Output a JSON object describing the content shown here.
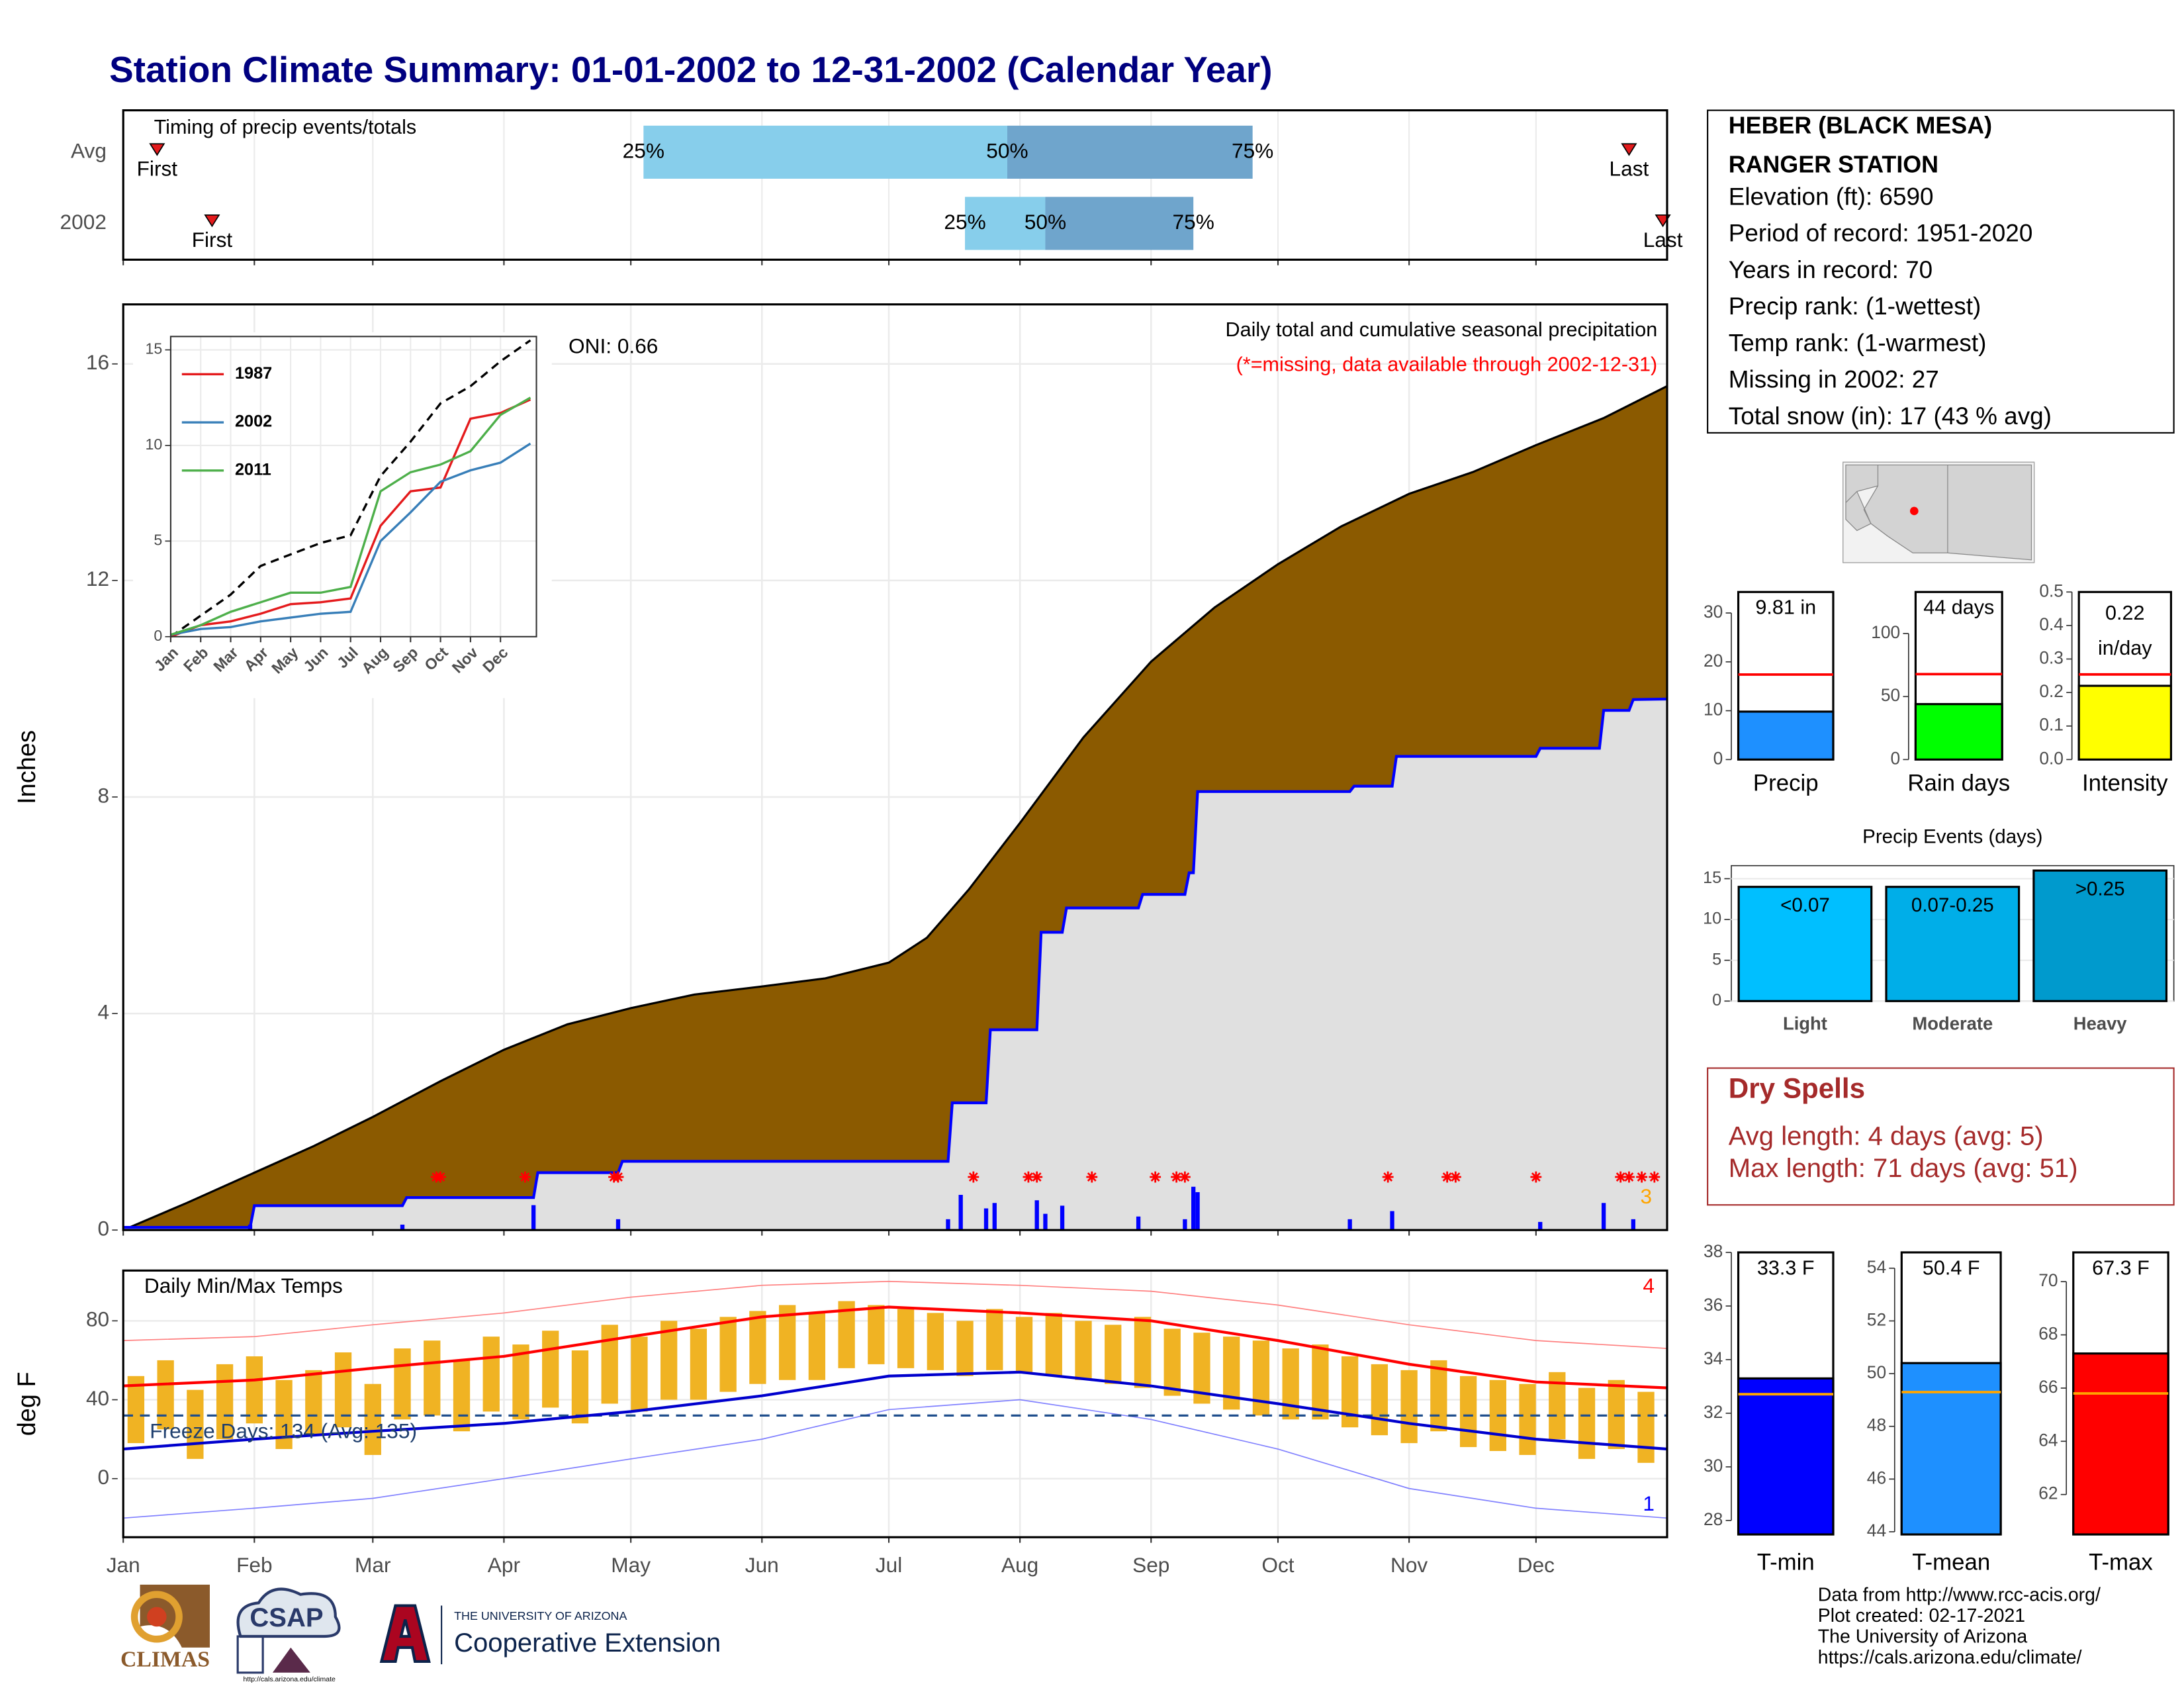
{
  "title": "Station Climate Summary: 01-01-2002 to 12-31-2002 (Calendar Year)",
  "station": {
    "name": [
      "HEBER (BLACK MESA)",
      "RANGER STATION"
    ],
    "lines": [
      "Elevation (ft): 6590",
      "Period of record: 1951-2020",
      "Years in record: 70",
      "Precip rank:  (1-wettest)",
      "Temp rank:  (1-warmest)",
      "Missing in 2002: 27",
      "Total snow (in): 17 (43 % avg)"
    ]
  },
  "dry_spells": {
    "title": "Dry Spells",
    "lines": [
      "Avg length: 4 days (avg: 5)",
      "Max length: 71 days (avg: 51)"
    ]
  },
  "footer": [
    "Data from http://www.rcc-acis.org/",
    "Plot created: 02-17-2021",
    "The University of Arizona",
    "https://cals.arizona.edu/climate/"
  ],
  "logos": {
    "climas": "CLIMAS",
    "csap": "CSAP",
    "csap_url": "http://cals.arizona.edu/climate",
    "ua": "THE UNIVERSITY OF ARIZONA",
    "extension": "Cooperative Extension"
  },
  "chart_data": [
    {
      "type": "timeline",
      "title": "Timing of precip events/totals",
      "categories": [
        "Avg",
        "2002"
      ],
      "series": [
        {
          "name": "First",
          "values": [
            8,
            21
          ]
        },
        {
          "name": "25%",
          "values": [
            123,
            199
          ]
        },
        {
          "name": "50%",
          "values": [
            209,
            218
          ]
        },
        {
          "name": "75%",
          "values": [
            267,
            253
          ]
        },
        {
          "name": "Last",
          "values": [
            356,
            364
          ]
        }
      ],
      "band_colors": [
        "#87ceeb",
        "#6fa5cc"
      ],
      "marker_color": "#e31a1c",
      "xlim": [
        0,
        365
      ],
      "xticks": [
        0,
        31,
        59,
        90,
        120,
        151,
        181,
        212,
        243,
        273,
        304,
        334
      ],
      "grid": true
    },
    {
      "type": "area",
      "ylabel": "Inches",
      "xlim": [
        0,
        365
      ],
      "ylim": [
        0,
        17.1
      ],
      "xticks": [
        0,
        31,
        59,
        90,
        120,
        151,
        181,
        212,
        243,
        273,
        304,
        334
      ],
      "yticks": [
        0,
        4,
        8,
        12,
        16
      ],
      "grid": true,
      "series": [
        {
          "color": "#8b5a00",
          "x": [
            0,
            15,
            31,
            45,
            59,
            75,
            90,
            105,
            120,
            135,
            151,
            166,
            181,
            190,
            200,
            212,
            227,
            243,
            258,
            273,
            288,
            304,
            319,
            334,
            350,
            365
          ],
          "values": [
            0,
            0.5,
            1.06,
            1.55,
            2.09,
            2.75,
            3.33,
            3.8,
            4.1,
            4.35,
            4.5,
            4.65,
            4.94,
            5.4,
            6.3,
            7.52,
            9.1,
            10.5,
            11.5,
            12.3,
            13.0,
            13.6,
            14.0,
            14.5,
            15.0,
            15.59
          ]
        },
        {
          "color": "#0000ff",
          "fill": "#e0e0e0",
          "x": [
            0,
            30,
            31,
            66,
            67,
            97,
            98,
            117,
            118,
            195,
            196,
            204,
            205,
            216,
            217,
            222,
            223,
            240,
            241,
            251,
            252,
            253,
            254,
            290,
            291,
            300,
            301,
            334,
            335,
            349,
            350,
            356,
            357,
            365
          ],
          "values": [
            0.05,
            0.05,
            0.45,
            0.45,
            0.6,
            0.6,
            1.06,
            1.06,
            1.27,
            1.27,
            2.35,
            2.35,
            3.7,
            3.7,
            5.5,
            5.5,
            5.95,
            5.95,
            6.2,
            6.2,
            6.6,
            6.6,
            8.1,
            8.1,
            8.2,
            8.2,
            8.75,
            8.75,
            8.9,
            8.9,
            9.6,
            9.6,
            9.8,
            9.81
          ]
        }
      ],
      "daily": {
        "color": "#0000ff",
        "x": [
          30,
          66,
          97,
          117,
          195,
          198,
          204,
          206,
          216,
          218,
          222,
          240,
          251,
          253,
          254,
          290,
          300,
          335,
          350,
          357
        ],
        "values": [
          0.1,
          0.1,
          0.46,
          0.2,
          0.2,
          0.65,
          0.4,
          0.5,
          0.55,
          0.3,
          0.45,
          0.25,
          0.2,
          0.8,
          0.7,
          0.2,
          0.35,
          0.15,
          0.5,
          0.2
        ]
      },
      "missing_days": [
        74,
        75,
        95,
        116,
        117,
        201,
        214,
        216,
        229,
        244,
        249,
        251,
        299,
        313,
        315,
        334,
        354,
        356,
        359,
        362
      ],
      "missing_color": "#ff0000",
      "annotations": [
        {
          "text": "Daily total and cumulative seasonal precipitation",
          "color": "#000000"
        },
        {
          "text": "(*=missing, data available through 2002-12-31)",
          "color": "#ff0000"
        },
        {
          "text": "ONI: 0.66",
          "color": "#000000"
        },
        {
          "text": "3",
          "color": "#ffa500"
        }
      ]
    },
    {
      "type": "line",
      "x": [
        0,
        1,
        2,
        3,
        4,
        5,
        6,
        7,
        8,
        9,
        10,
        11,
        12
      ],
      "xlim": [
        0,
        12.2
      ],
      "ylim": [
        0,
        15.7
      ],
      "xticks": [
        {
          "value": 0,
          "label": "Jan"
        },
        {
          "value": 1,
          "label": "Feb"
        },
        {
          "value": 2,
          "label": "Mar"
        },
        {
          "value": 3,
          "label": "Apr"
        },
        {
          "value": 4,
          "label": "May"
        },
        {
          "value": 5,
          "label": "Jun"
        },
        {
          "value": 6,
          "label": "Jul"
        },
        {
          "value": 7,
          "label": "Aug"
        },
        {
          "value": 8,
          "label": "Sep"
        },
        {
          "value": 9,
          "label": "Oct"
        },
        {
          "value": 10,
          "label": "Nov"
        },
        {
          "value": 11,
          "label": "Dec"
        }
      ],
      "yticks": [
        0,
        5,
        10,
        15
      ],
      "grid": true,
      "series": [
        {
          "color": "#000000",
          "dashed": true,
          "values": [
            0,
            1.1,
            2.2,
            3.7,
            4.3,
            4.9,
            5.3,
            8.4,
            10.2,
            12.2,
            13.1,
            14.4,
            15.5
          ]
        },
        {
          "name": "1987",
          "color": "#e41a1c",
          "values": [
            0,
            0.6,
            0.8,
            1.2,
            1.7,
            1.8,
            2.0,
            5.8,
            7.6,
            7.8,
            11.4,
            11.7,
            12.4
          ]
        },
        {
          "name": "2002",
          "color": "#377eb8",
          "values": [
            0.1,
            0.4,
            0.5,
            0.8,
            1.0,
            1.2,
            1.3,
            5.0,
            6.5,
            8.1,
            8.7,
            9.1,
            10.1
          ]
        },
        {
          "name": "2011",
          "color": "#4daf4a",
          "values": [
            0.1,
            0.6,
            1.3,
            1.8,
            2.3,
            2.3,
            2.6,
            7.6,
            8.6,
            9.0,
            9.7,
            11.6,
            12.5
          ]
        }
      ],
      "legend": "upper left"
    },
    {
      "type": "temperature",
      "ylabel": "deg F",
      "xlim": [
        0,
        365
      ],
      "ylim": [
        -29.7,
        105.5
      ],
      "xticks": [
        {
          "value": 0,
          "label": "Jan"
        },
        {
          "value": 31,
          "label": "Feb"
        },
        {
          "value": 59,
          "label": "Mar"
        },
        {
          "value": 90,
          "label": "Apr"
        },
        {
          "value": 120,
          "label": "May"
        },
        {
          "value": 151,
          "label": "Jun"
        },
        {
          "value": 181,
          "label": "Jul"
        },
        {
          "value": 212,
          "label": "Aug"
        },
        {
          "value": 243,
          "label": "Sep"
        },
        {
          "value": 273,
          "label": "Oct"
        },
        {
          "value": 304,
          "label": "Nov"
        },
        {
          "value": 334,
          "label": "Dec"
        }
      ],
      "yticks": [
        0,
        40,
        80
      ],
      "grid": true,
      "days": [
        3,
        10,
        17,
        24,
        31,
        38,
        45,
        52,
        59,
        66,
        73,
        80,
        87,
        94,
        101,
        108,
        115,
        122,
        129,
        136,
        143,
        150,
        157,
        164,
        171,
        178,
        185,
        192,
        199,
        206,
        213,
        220,
        227,
        234,
        241,
        248,
        255,
        262,
        269,
        276,
        283,
        290,
        297,
        304,
        311,
        318,
        325,
        332,
        339,
        346,
        353,
        360
      ],
      "tmax": [
        52,
        60,
        45,
        58,
        62,
        50,
        55,
        64,
        48,
        66,
        70,
        60,
        72,
        68,
        75,
        65,
        78,
        72,
        80,
        76,
        82,
        85,
        88,
        84,
        90,
        88,
        86,
        84,
        80,
        86,
        82,
        84,
        80,
        78,
        82,
        76,
        74,
        72,
        70,
        66,
        68,
        62,
        58,
        55,
        60,
        52,
        50,
        48,
        54,
        46,
        50,
        44
      ],
      "tmin": [
        18,
        25,
        10,
        20,
        28,
        15,
        22,
        26,
        12,
        30,
        32,
        24,
        34,
        30,
        36,
        28,
        38,
        34,
        40,
        40,
        44,
        48,
        50,
        50,
        56,
        58,
        56,
        55,
        52,
        55,
        54,
        52,
        50,
        48,
        46,
        42,
        38,
        35,
        32,
        30,
        30,
        26,
        22,
        18,
        24,
        16,
        14,
        12,
        20,
        10,
        15,
        8
      ],
      "bar_color": "#f0b323",
      "normals": {
        "x": [
          0,
          31,
          59,
          90,
          120,
          151,
          181,
          212,
          243,
          273,
          304,
          334,
          365
        ],
        "series": [
          {
            "color": "#ff8080",
            "width": 0.8,
            "values": [
              70,
              72,
              78,
              84,
              92,
              98,
              100,
              98,
              95,
              88,
              78,
              70,
              66
            ]
          },
          {
            "color": "#8080ff",
            "width": 0.8,
            "values": [
              -20,
              -15,
              -10,
              0,
              10,
              20,
              35,
              40,
              30,
              15,
              -5,
              -15,
              -20
            ]
          },
          {
            "color": "#ff0000",
            "width": 2,
            "values": [
              47,
              50,
              56,
              62,
              72,
              82,
              87,
              84,
              80,
              70,
              58,
              49,
              46
            ]
          },
          {
            "color": "#0000cd",
            "width": 2,
            "values": [
              15,
              20,
              24,
              28,
              34,
              42,
              52,
              54,
              47,
              38,
              28,
              20,
              15
            ]
          }
        ]
      },
      "freeze_line": 32,
      "freeze_color": "#1f4e8c",
      "annotations": [
        {
          "text": "Daily Min/Max Temps",
          "color": "#000000"
        },
        {
          "text": "Freeze Days: 134 (Avg: 135)",
          "color": "#1f3f6e"
        },
        {
          "text": "4",
          "color": "#ff0000"
        },
        {
          "text": "1",
          "color": "#0000ff"
        }
      ]
    },
    {
      "type": "bar",
      "categories": [
        "Precip"
      ],
      "values": [
        9.81
      ],
      "value_labels": [
        "9.81 in"
      ],
      "color": "#1e90ff",
      "average": 17.4,
      "average_color": "#ff0000",
      "ylim": [
        0,
        34.3
      ],
      "yticks": [
        0,
        10,
        20,
        30
      ]
    },
    {
      "type": "bar",
      "categories": [
        "Rain days"
      ],
      "values": [
        44
      ],
      "value_labels": [
        "44 days"
      ],
      "color": "#00ff00",
      "average": 67.8,
      "average_color": "#ff0000",
      "ylim": [
        0,
        133
      ],
      "yticks": [
        0,
        50,
        100
      ]
    },
    {
      "type": "bar",
      "categories": [
        "Intensity"
      ],
      "values": [
        0.22
      ],
      "value_labels": [
        [
          "0.22",
          "in/day"
        ]
      ],
      "color": "#ffff00",
      "average": 0.254,
      "average_color": "#ff0000",
      "ylim": [
        0,
        0.5
      ],
      "yticks": [
        {
          "value": 0,
          "label": "0.0"
        },
        0.1,
        0.2,
        0.3,
        0.4,
        0.5
      ]
    },
    {
      "type": "bar",
      "title": "Precip Events (days)",
      "categories": [
        "Light",
        "Moderate",
        "Heavy"
      ],
      "values": [
        14,
        14,
        16
      ],
      "bar_labels": [
        "<0.07",
        "0.07-0.25",
        ">0.25"
      ],
      "colors": [
        "#00bfff",
        "#00aee8",
        "#009acd"
      ],
      "ylim": [
        0,
        16.6
      ],
      "yticks": [
        0,
        5,
        10,
        15
      ],
      "grid": true
    },
    {
      "type": "bar",
      "categories": [
        "T-min"
      ],
      "values": [
        33.3
      ],
      "value_labels": [
        "33.3 F"
      ],
      "color": "#0000ff",
      "average": 32.71,
      "average_color": "#ffa500",
      "ylim": [
        27.48,
        38
      ],
      "yticks": [
        28,
        30,
        32,
        34,
        36,
        38
      ]
    },
    {
      "type": "bar",
      "categories": [
        "T-mean"
      ],
      "values": [
        50.4
      ],
      "value_labels": [
        "50.4 F"
      ],
      "color": "#1e90ff",
      "average": 49.3,
      "average_color": "#ffa500",
      "ylim": [
        43.9,
        54.6
      ],
      "yticks": [
        44,
        46,
        48,
        50,
        52,
        54
      ]
    },
    {
      "type": "bar",
      "categories": [
        "T-max"
      ],
      "values": [
        67.3
      ],
      "value_labels": [
        "67.3 F"
      ],
      "color": "#ff0000",
      "average": 65.8,
      "average_color": "#ffa500",
      "ylim": [
        60.5,
        71.1
      ],
      "yticks": [
        62,
        64,
        66,
        68,
        70
      ]
    }
  ]
}
